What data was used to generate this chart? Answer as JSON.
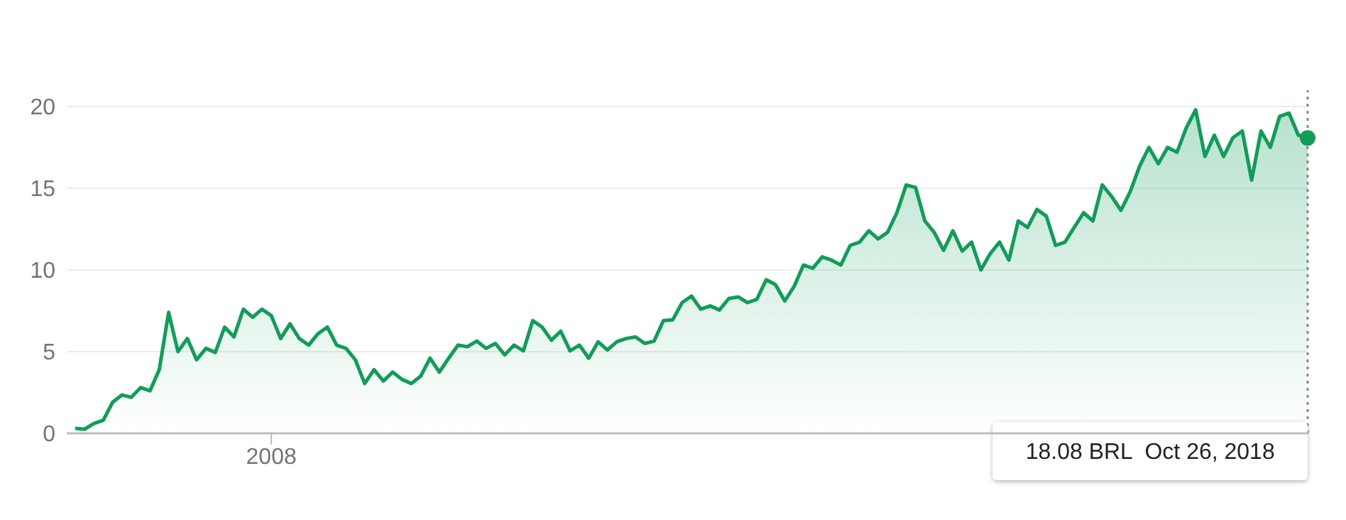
{
  "chart_data": {
    "type": "area",
    "categories": [
      null,
      null,
      null,
      null,
      null,
      null,
      null,
      null,
      null,
      null,
      null,
      null,
      null,
      null,
      null,
      null,
      null,
      null,
      null,
      null,
      null,
      "2008",
      null,
      null,
      null,
      null,
      null,
      null,
      null,
      null,
      null,
      null,
      null,
      null,
      null,
      null,
      null,
      null,
      null,
      null,
      null,
      null,
      null,
      null,
      null,
      null,
      null,
      null,
      null,
      null,
      null,
      null,
      null,
      null,
      null,
      null,
      null,
      null,
      null,
      null,
      null,
      null,
      null,
      null,
      null,
      null,
      null,
      null,
      null,
      null,
      null,
      null,
      null,
      null,
      null,
      null,
      null,
      null,
      null,
      null,
      null,
      null,
      null,
      null,
      null,
      null,
      null,
      null,
      null,
      null,
      null,
      null,
      null,
      null,
      null,
      null,
      null,
      null,
      null,
      null,
      null,
      null,
      null,
      null,
      null,
      null,
      null,
      null,
      null,
      null,
      null,
      null,
      null,
      null,
      null,
      null,
      null,
      null,
      null,
      null,
      null,
      null,
      null,
      null,
      null,
      null,
      null,
      null,
      null,
      null,
      null,
      null,
      null
    ],
    "series": [
      {
        "color": "#0f9d58",
        "values": [
          0.3,
          0.25,
          0.6,
          0.8,
          1.9,
          2.35,
          2.2,
          2.8,
          2.6,
          3.9,
          7.4,
          5.0,
          5.8,
          4.5,
          5.2,
          4.95,
          6.5,
          5.9,
          7.6,
          7.1,
          7.6,
          7.2,
          5.8,
          6.7,
          5.8,
          5.4,
          6.1,
          6.5,
          5.4,
          5.2,
          4.5,
          3.05,
          3.9,
          3.2,
          3.75,
          3.3,
          3.05,
          3.5,
          4.6,
          3.75,
          4.6,
          5.4,
          5.3,
          5.65,
          5.2,
          5.5,
          4.8,
          5.4,
          5.05,
          6.9,
          6.5,
          5.7,
          6.25,
          5.05,
          5.4,
          4.6,
          5.6,
          5.1,
          5.6,
          5.8,
          5.9,
          5.5,
          5.65,
          6.9,
          6.95,
          8.0,
          8.4,
          7.6,
          7.8,
          7.55,
          8.25,
          8.35,
          8.0,
          8.2,
          9.4,
          9.1,
          8.1,
          9.0,
          10.3,
          10.1,
          10.8,
          10.6,
          10.3,
          11.5,
          11.7,
          12.4,
          11.9,
          12.3,
          13.5,
          15.2,
          15.05,
          13.0,
          12.3,
          11.2,
          12.4,
          11.15,
          11.7,
          10.0,
          11.0,
          11.7,
          10.6,
          13.0,
          12.6,
          13.7,
          13.3,
          11.5,
          11.7,
          12.6,
          13.5,
          13.0,
          15.2,
          14.5,
          13.65,
          14.8,
          16.35,
          17.5,
          16.5,
          17.5,
          17.2,
          18.7,
          19.8,
          16.95,
          18.25,
          16.95,
          18.1,
          18.5,
          15.5,
          18.5,
          17.5,
          19.4,
          19.6,
          18.25,
          18.08
        ]
      }
    ],
    "ylim": [
      0,
      21
    ],
    "yticks": [
      0,
      5,
      10,
      15,
      20
    ],
    "grid": "y",
    "legend": false,
    "annotations": [
      "18.08 BRL  Oct 26, 2018"
    ]
  }
}
